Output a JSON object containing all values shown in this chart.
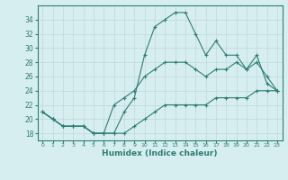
{
  "xlabel": "Humidex (Indice chaleur)",
  "x": [
    0,
    1,
    2,
    3,
    4,
    5,
    6,
    7,
    8,
    9,
    10,
    11,
    12,
    13,
    14,
    15,
    16,
    17,
    18,
    19,
    20,
    21,
    22,
    23
  ],
  "line_max": [
    21,
    20,
    19,
    19,
    19,
    18,
    18,
    18,
    21,
    23,
    29,
    33,
    34,
    35,
    35,
    32,
    29,
    31,
    29,
    29,
    27,
    29,
    25,
    24
  ],
  "line_mean": [
    21,
    20,
    19,
    19,
    19,
    18,
    18,
    22,
    23,
    24,
    26,
    27,
    28,
    28,
    28,
    27,
    26,
    27,
    27,
    28,
    27,
    28,
    26,
    24
  ],
  "line_min": [
    21,
    20,
    19,
    19,
    19,
    18,
    18,
    18,
    18,
    19,
    20,
    21,
    22,
    22,
    22,
    22,
    22,
    23,
    23,
    23,
    23,
    24,
    24,
    24
  ],
  "color": "#2e7d74",
  "bg_color": "#d6eef0",
  "grid_color": "#c0d8dc",
  "ylim": [
    17,
    36
  ],
  "yticks": [
    18,
    20,
    22,
    24,
    26,
    28,
    30,
    32,
    34
  ],
  "figsize": [
    3.2,
    2.0
  ],
  "dpi": 100
}
